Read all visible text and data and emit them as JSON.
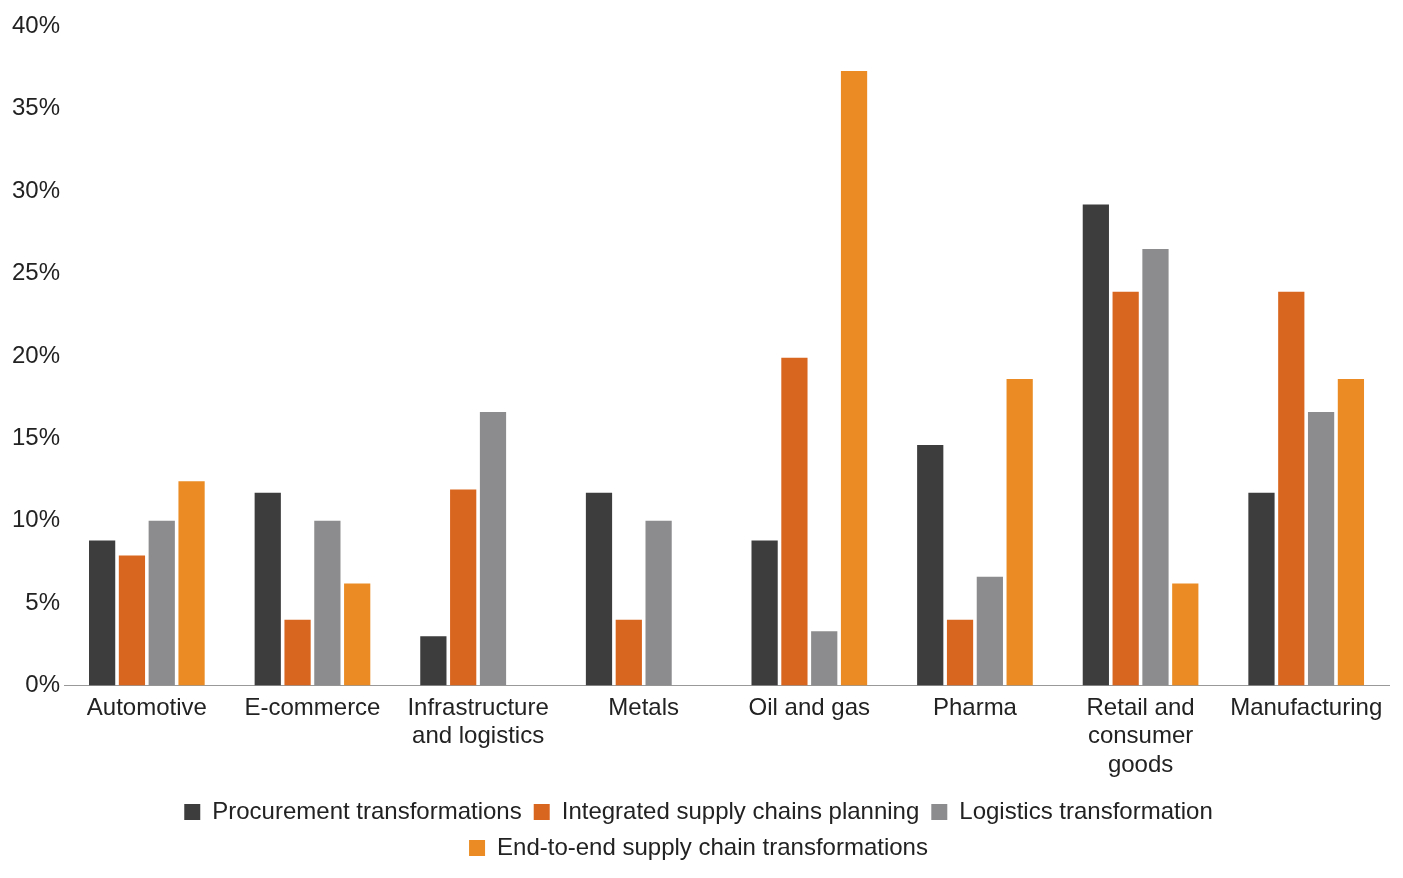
{
  "chart_data": {
    "type": "bar",
    "categories": [
      "Automotive",
      "E-commerce",
      "Infrastructure and logistics",
      "Metals",
      "Oil and gas",
      "Pharma",
      "Retail and consumer goods",
      "Manufacturing"
    ],
    "series": [
      {
        "name": "Procurement transformations",
        "color": "#3d3d3d",
        "values": [
          8.8,
          11.7,
          3.0,
          11.7,
          8.8,
          14.6,
          29.2,
          11.7
        ]
      },
      {
        "name": "Integrated supply chains planning",
        "color": "#d9661f",
        "values": [
          7.9,
          4.0,
          11.9,
          4.0,
          19.9,
          4.0,
          23.9,
          23.9
        ]
      },
      {
        "name": "Logistics transformation",
        "color": "#8c8c8e",
        "values": [
          10.0,
          10.0,
          16.6,
          10.0,
          3.3,
          6.6,
          26.5,
          16.6
        ]
      },
      {
        "name": "End-to-end supply chain transformations",
        "color": "#ea8c23",
        "values": [
          12.4,
          6.2,
          null,
          null,
          37.3,
          18.6,
          6.2,
          18.6
        ]
      }
    ],
    "ylim": [
      0,
      40
    ],
    "yticks": [
      {
        "value": 0,
        "label": "0%"
      },
      {
        "value": 5,
        "label": "5%"
      },
      {
        "value": 10,
        "label": "10%"
      },
      {
        "value": 15,
        "label": "15%"
      },
      {
        "value": 20,
        "label": "20%"
      },
      {
        "value": 25,
        "label": "25%"
      },
      {
        "value": 30,
        "label": "30%"
      },
      {
        "value": 35,
        "label": "35%"
      },
      {
        "value": 40,
        "label": "40%"
      }
    ],
    "grid": false,
    "legend": "bottom"
  }
}
